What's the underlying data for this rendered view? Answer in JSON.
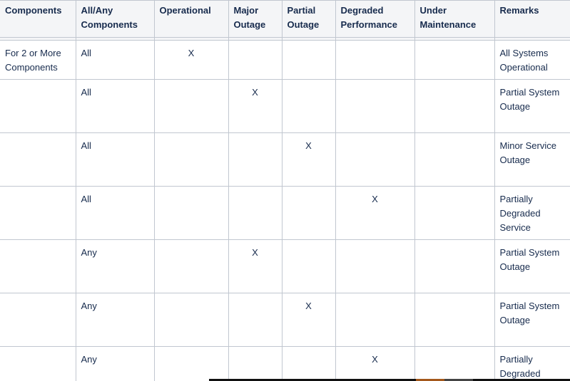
{
  "table": {
    "headers": [
      "Components",
      "All/Any Components",
      "Operational",
      "Major Outage",
      "Partial Outage",
      "Degraded Performance",
      "Under Maintenance",
      "Remarks"
    ],
    "rows": [
      {
        "component": "For 2 or More Components",
        "scope": "All",
        "marks": [
          "X",
          "",
          "",
          "",
          ""
        ],
        "remarks": "All Systems Operational"
      },
      {
        "component": "",
        "scope": "All",
        "marks": [
          "",
          "X",
          "",
          "",
          ""
        ],
        "remarks": "Partial System Outage"
      },
      {
        "component": "",
        "scope": "All",
        "marks": [
          "",
          "",
          "X",
          "",
          ""
        ],
        "remarks": "Minor Service Outage"
      },
      {
        "component": "",
        "scope": "All",
        "marks": [
          "",
          "",
          "",
          "X",
          ""
        ],
        "remarks": "Partially Degraded Service"
      },
      {
        "component": "",
        "scope": "Any",
        "marks": [
          "",
          "X",
          "",
          "",
          ""
        ],
        "remarks": "Partial System Outage"
      },
      {
        "component": "",
        "scope": "Any",
        "marks": [
          "",
          "",
          "X",
          "",
          ""
        ],
        "remarks": "Partial System Outage"
      },
      {
        "component": "",
        "scope": "Any",
        "marks": [
          "",
          "",
          "",
          "X",
          ""
        ],
        "remarks": "Partially Degraded"
      }
    ]
  }
}
